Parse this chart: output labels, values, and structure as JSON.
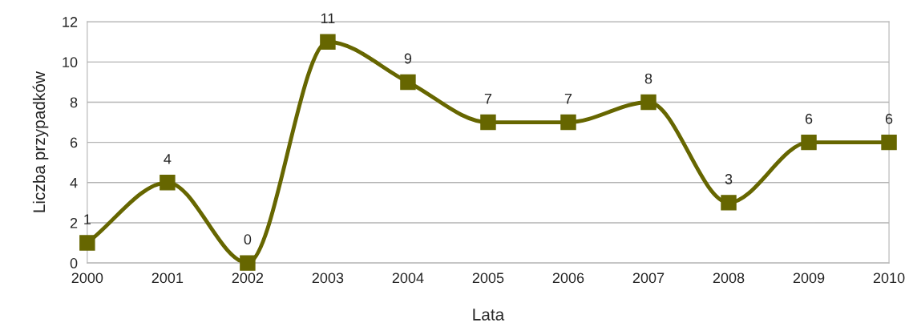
{
  "chart_data": {
    "type": "line",
    "xlabel": "Lata",
    "ylabel": "Liczba przypadków",
    "x": [
      2000,
      2001,
      2002,
      2003,
      2004,
      2005,
      2006,
      2007,
      2008,
      2009,
      2010
    ],
    "series": [
      {
        "color": "#666600",
        "values": [
          1,
          4,
          0,
          11,
          9,
          7,
          7,
          8,
          3,
          6,
          6
        ]
      }
    ],
    "xlim": [
      2000,
      2010
    ],
    "xticks": [
      2000,
      2001,
      2002,
      2003,
      2004,
      2005,
      2006,
      2007,
      2008,
      2009,
      2010
    ],
    "ylim": [
      0,
      12
    ],
    "yticks": [
      0,
      2,
      4,
      6,
      8,
      10,
      12
    ],
    "grid": "y",
    "marker": "square",
    "line_style": "solid",
    "data_labels": true,
    "legend": false
  }
}
